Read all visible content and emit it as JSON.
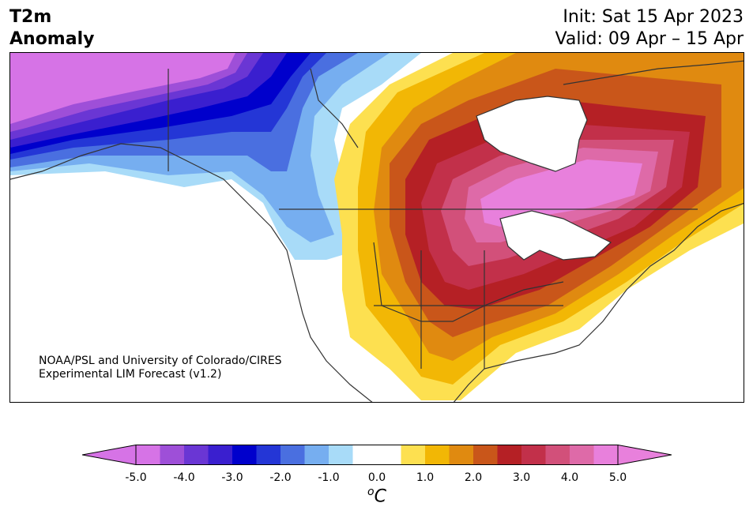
{
  "header": {
    "title_line1": "T2m",
    "title_line2": "Anomaly",
    "init_label": "Init: Sat 15 Apr 2023",
    "valid_label": "Valid: 09 Apr – 15 Apr"
  },
  "map": {
    "credit_line1": "NOAA/PSL and University of Colorado/CIRES",
    "credit_line2": "Experimental LIM Forecast (v1.2)"
  },
  "colorbar": {
    "ticks": [
      "-5.0",
      "-4.0",
      "-3.0",
      "-2.0",
      "-1.0",
      "0.0",
      "1.0",
      "2.0",
      "3.0",
      "4.0",
      "5.0"
    ],
    "unit_base": "C",
    "unit_super": "o",
    "colors": [
      "#d673e6",
      "#9e4fd8",
      "#6a36d4",
      "#3a1fcf",
      "#0000cc",
      "#2436d6",
      "#4a6fe0",
      "#76aef0",
      "#a8dbf8",
      "#ffffff",
      "#ffffff",
      "#fde050",
      "#f2b705",
      "#e08a10",
      "#c9561a",
      "#b52025",
      "#c2304a",
      "#d2507a",
      "#de6aa8",
      "#e880dc"
    ],
    "under_color": "#d673e6",
    "over_color": "#e880dc"
  }
}
